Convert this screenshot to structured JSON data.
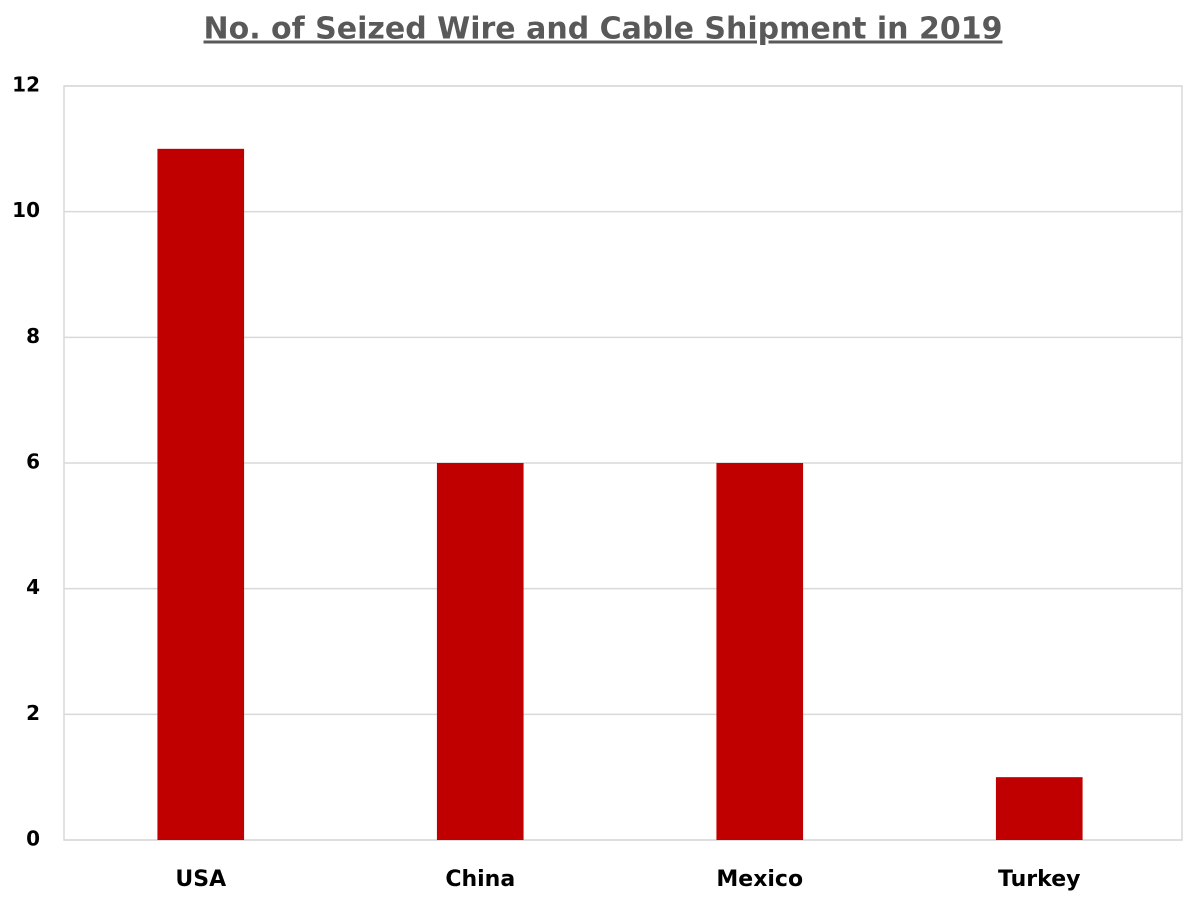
{
  "chart_data": {
    "type": "bar",
    "title": "No. of Seized Wire and Cable Shipment in 2019",
    "categories": [
      "USA",
      "China",
      "Mexico",
      "Turkey"
    ],
    "values": [
      11,
      6,
      6,
      1
    ],
    "color": "#c00000",
    "ylim": [
      0,
      12
    ],
    "yticks": [
      0,
      2,
      4,
      6,
      8,
      10,
      12
    ],
    "grid": true
  }
}
